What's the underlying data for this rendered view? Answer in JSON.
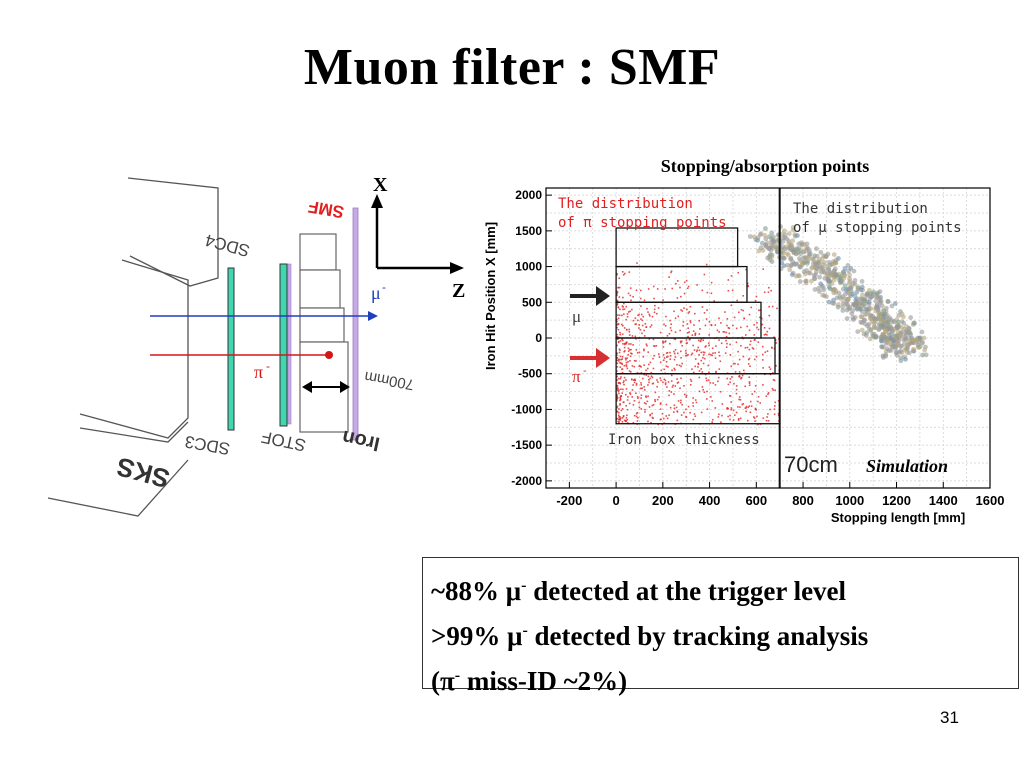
{
  "slide": {
    "title": "Muon filter : SMF",
    "page_number": "31"
  },
  "diagram": {
    "labels": {
      "smf": "SMF",
      "sdc4": "SDC4",
      "sdc3": "SDC3",
      "stof": "STOF",
      "iron": "Iron",
      "sks": "SKS",
      "length": "700mm",
      "axis_x": "X",
      "axis_z": "Z",
      "muon": "μ",
      "pion": "π",
      "charge": "-"
    },
    "colors": {
      "muon_track": "#1f3fbf",
      "pion_track": "#d01818",
      "smf_label": "#e02020",
      "counter_fill": "#3fd6b0",
      "iron_plate": "#c9a8e8"
    }
  },
  "plot": {
    "title": "Stopping/absorption points",
    "annot_pi_line1": "The distribution",
    "annot_pi_line2": "of π stopping points",
    "annot_mu_line1": "The distribution",
    "annot_mu_line2": "of μ stopping points",
    "box_label": "Iron box thickness",
    "cm_label": "70cm",
    "simulation_label": "Simulation",
    "mu_arrow_label": "μ",
    "pi_arrow_label": "π",
    "charge": "-"
  },
  "chart_data": {
    "type": "scatter",
    "title": "",
    "xlabel": "Stopping length [mm]",
    "ylabel": "Iron Hit Position X [mm]",
    "xlim": [
      -300,
      1600
    ],
    "ylim": [
      -2100,
      2100
    ],
    "xticks": [
      -200,
      0,
      200,
      400,
      600,
      800,
      1000,
      1200,
      1400,
      1600
    ],
    "yticks": [
      2000,
      1500,
      1000,
      500,
      0,
      -500,
      -1000,
      -1500,
      -2000
    ],
    "grid": true,
    "annotations": [
      "The distribution of π stopping points",
      "The distribution of μ stopping points",
      "Iron box thickness",
      "70cm",
      "Simulation"
    ],
    "iron_box_steps": [
      {
        "x_start": 0,
        "x_end": 520,
        "y_low": 1000,
        "y_high": 1540
      },
      {
        "x_start": 0,
        "x_end": 560,
        "y_low": 500,
        "y_high": 1000
      },
      {
        "x_start": 0,
        "x_end": 620,
        "y_low": 0,
        "y_high": 500
      },
      {
        "x_start": 0,
        "x_end": 680,
        "y_low": -500,
        "y_high": 0
      },
      {
        "x_start": 0,
        "x_end": 700,
        "y_low": -1200,
        "y_high": -500
      }
    ],
    "boundary_x": 700,
    "series": [
      {
        "color": "#e03030",
        "description": "pion stopping points",
        "x_range": [
          0,
          700
        ],
        "y_range": [
          -1200,
          1100
        ]
      },
      {
        "color": "#808080",
        "description": "muon stopping points",
        "x_center_path": [
          [
            650,
            1400
          ],
          [
            900,
            900
          ],
          [
            1150,
            200
          ],
          [
            1250,
            -150
          ]
        ]
      }
    ]
  },
  "summary": {
    "line1_pre": "~88% ",
    "line1_sym": "μ",
    "line1_post": " detected at the trigger level",
    "line2_pre": ">99% ",
    "line2_sym": "μ",
    "line2_post": " detected by tracking analysis",
    "line3_pre": "(",
    "line3_sym": "π",
    "line3_post": " miss-ID ~2%)",
    "charge": "-"
  }
}
